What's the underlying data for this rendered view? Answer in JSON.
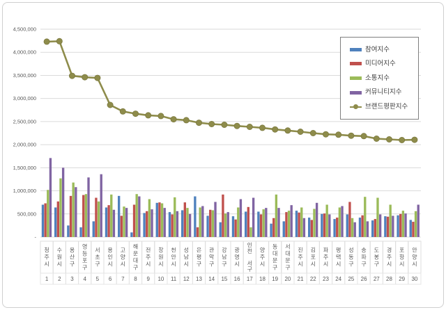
{
  "chart_data": {
    "type": "combo",
    "title": "",
    "categories": [
      "청주시",
      "수원시",
      "용산구",
      "영등포구",
      "서초구",
      "용인시",
      "고양시",
      "해운대구",
      "전주시",
      "창원시",
      "천안시",
      "성남시",
      "은평구",
      "관악구",
      "강남구",
      "광명시",
      "인천 서구",
      "양주시",
      "동대문구",
      "서대문구",
      "진주시",
      "김포시",
      "파주시",
      "평택시",
      "성동구",
      "송파구",
      "도봉구",
      "경주시",
      "포항시",
      "안양시"
    ],
    "ranks": [
      1,
      2,
      3,
      4,
      5,
      6,
      7,
      8,
      9,
      10,
      11,
      12,
      13,
      14,
      15,
      16,
      17,
      18,
      19,
      20,
      21,
      22,
      23,
      24,
      25,
      26,
      27,
      28,
      29,
      30
    ],
    "y_axis": {
      "min": 0,
      "max": 4500000,
      "step": 500000,
      "grid": true,
      "ticks": [
        "-",
        "500,000",
        "1,000,000",
        "1,500,000",
        "2,000,000",
        "2,500,000",
        "3,000,000",
        "3,500,000",
        "4,000,000",
        "4,500,000"
      ]
    },
    "legend_position": "top-right",
    "series": [
      {
        "name": "참여지수",
        "type": "bar",
        "color": "#4F81BD",
        "values": [
          700000,
          640000,
          250000,
          210000,
          340000,
          640000,
          890000,
          100000,
          520000,
          740000,
          540000,
          580000,
          880000,
          460000,
          320000,
          450000,
          550000,
          550000,
          290000,
          340000,
          570000,
          420000,
          500000,
          390000,
          490000,
          420000,
          360000,
          450000,
          470000,
          370000
        ]
      },
      {
        "name": "미디어지수",
        "type": "bar",
        "color": "#C0504D",
        "values": [
          730000,
          770000,
          890000,
          910000,
          850000,
          690000,
          460000,
          700000,
          560000,
          750000,
          490000,
          750000,
          210000,
          590000,
          920000,
          380000,
          650000,
          490000,
          410000,
          540000,
          530000,
          370000,
          510000,
          420000,
          760000,
          470000,
          390000,
          440000,
          500000,
          330000
        ]
      },
      {
        "name": "소통지수",
        "type": "bar",
        "color": "#9BBB59",
        "values": [
          1020000,
          1270000,
          1180000,
          930000,
          770000,
          920000,
          660000,
          930000,
          820000,
          730000,
          860000,
          630000,
          640000,
          580000,
          510000,
          640000,
          210000,
          600000,
          920000,
          570000,
          640000,
          610000,
          700000,
          640000,
          410000,
          870000,
          850000,
          700000,
          570000,
          560000
        ]
      },
      {
        "name": "커뮤니티지수",
        "type": "bar",
        "color": "#8064A2",
        "values": [
          1710000,
          1500000,
          1080000,
          1290000,
          1360000,
          590000,
          630000,
          880000,
          600000,
          630000,
          560000,
          500000,
          670000,
          760000,
          540000,
          820000,
          850000,
          630000,
          630000,
          690000,
          410000,
          740000,
          490000,
          670000,
          320000,
          340000,
          490000,
          460000,
          510000,
          700000
        ]
      },
      {
        "name": "브랜드평판지수",
        "type": "line",
        "color": "#8E8C4B",
        "values": [
          4230000,
          4240000,
          3490000,
          3460000,
          3445000,
          2860000,
          2720000,
          2670000,
          2635000,
          2620000,
          2550000,
          2530000,
          2475000,
          2445000,
          2430000,
          2405000,
          2385000,
          2365000,
          2330000,
          2305000,
          2280000,
          2250000,
          2225000,
          2215000,
          2195000,
          2185000,
          2130000,
          2115000,
          2100000,
          2105000
        ]
      }
    ]
  }
}
